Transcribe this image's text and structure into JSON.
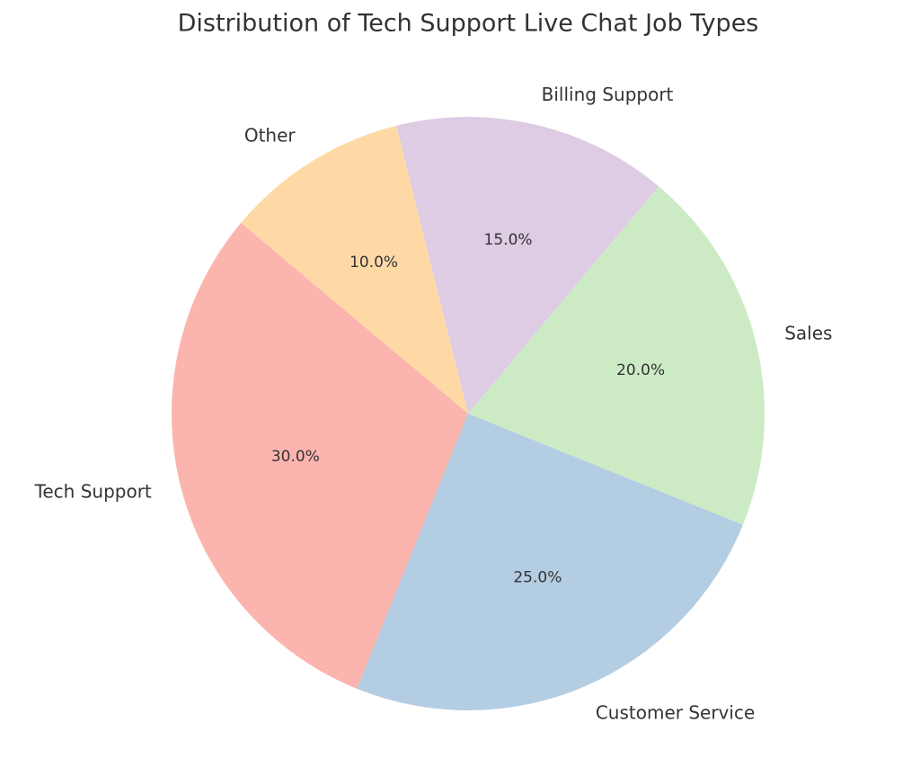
{
  "chart_data": {
    "type": "pie",
    "title": "Distribution of Tech Support Live Chat Job Types",
    "categories": [
      "Tech Support",
      "Customer Service",
      "Sales",
      "Billing Support",
      "Other"
    ],
    "values": [
      30,
      25,
      20,
      15,
      10
    ],
    "value_labels": [
      "30.0%",
      "25.0%",
      "20.0%",
      "15.0%",
      "10.0%"
    ],
    "colors": [
      "#fbb4ae",
      "#b3cde3",
      "#ccebc5",
      "#decbe4",
      "#fed9a6"
    ]
  }
}
